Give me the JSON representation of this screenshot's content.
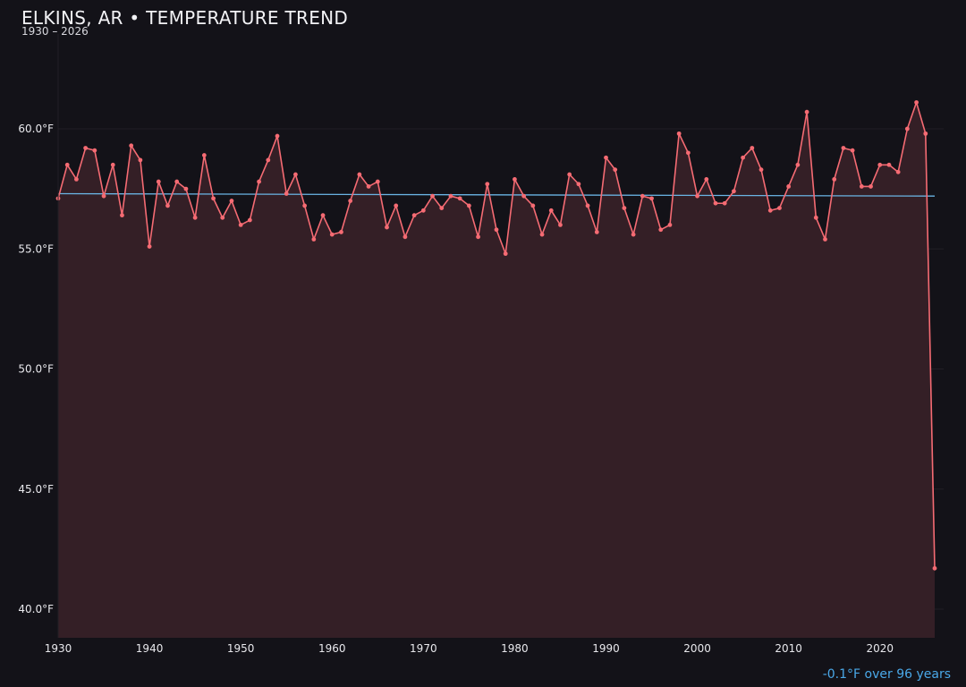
{
  "header": {
    "title": "ELKINS, AR • TEMPERATURE TREND",
    "subtitle": "1930 – 2026",
    "trend_note": "-0.1°F over 96 years"
  },
  "colors": {
    "background": "#131218",
    "line": "#f56b73",
    "area": "#341f26",
    "trend": "#6ab4e4",
    "grid": "#221f26",
    "axis_text": "#e8e8ec"
  },
  "chart_data": {
    "type": "line",
    "title": "ELKINS, AR • TEMPERATURE TREND",
    "subtitle": "1930 – 2026",
    "xlabel": "",
    "ylabel": "",
    "xlim": [
      1930,
      2027
    ],
    "ylim": [
      38.8,
      62.5
    ],
    "grid": true,
    "legend": "none",
    "y_ticks": [
      40.0,
      45.0,
      50.0,
      55.0,
      60.0
    ],
    "y_tick_labels": [
      "40.0°F",
      "45.0°F",
      "50.0°F",
      "55.0°F",
      "60.0°F"
    ],
    "x_ticks": [
      1930,
      1940,
      1950,
      1960,
      1970,
      1980,
      1990,
      2000,
      2010,
      2020
    ],
    "x_tick_labels": [
      "1930",
      "1940",
      "1950",
      "1960",
      "1970",
      "1980",
      "1990",
      "2000",
      "2010",
      "2020"
    ],
    "series": [
      {
        "x": [
          1930,
          1931,
          1932,
          1933,
          1934,
          1935,
          1936,
          1937,
          1938,
          1939,
          1940,
          1941,
          1942,
          1943,
          1944,
          1945,
          1946,
          1947,
          1948,
          1949,
          1950,
          1951,
          1952,
          1953,
          1954,
          1955,
          1956,
          1957,
          1958,
          1959,
          1960,
          1961,
          1962,
          1963,
          1964,
          1965,
          1966,
          1967,
          1968,
          1969,
          1970,
          1971,
          1972,
          1973,
          1974,
          1975,
          1976,
          1977,
          1978,
          1979,
          1980,
          1981,
          1982,
          1983,
          1984,
          1985,
          1986,
          1987,
          1988,
          1989,
          1990,
          1991,
          1992,
          1993,
          1994,
          1995,
          1996,
          1997,
          1998,
          1999,
          2000,
          2001,
          2002,
          2003,
          2004,
          2005,
          2006,
          2007,
          2008,
          2009,
          2010,
          2011,
          2012,
          2013,
          2014,
          2015,
          2016,
          2017,
          2018,
          2019,
          2020,
          2021,
          2022,
          2023,
          2024,
          2025,
          2026
        ],
        "values": [
          57.1,
          58.5,
          57.9,
          59.2,
          59.1,
          57.2,
          58.5,
          56.4,
          59.3,
          58.7,
          55.1,
          57.8,
          56.8,
          57.8,
          57.5,
          56.3,
          58.9,
          57.1,
          56.3,
          57.0,
          56.0,
          56.2,
          57.8,
          58.7,
          59.7,
          57.3,
          58.1,
          56.8,
          55.4,
          56.4,
          55.6,
          55.7,
          57.0,
          58.1,
          57.6,
          57.8,
          55.9,
          56.8,
          55.5,
          56.4,
          56.6,
          57.2,
          56.7,
          57.2,
          57.1,
          56.8,
          55.5,
          57.7,
          55.8,
          54.8,
          57.9,
          57.2,
          56.8,
          55.6,
          56.6,
          56.0,
          58.1,
          57.7,
          56.8,
          55.7,
          58.8,
          58.3,
          56.7,
          55.6,
          57.2,
          57.1,
          55.8,
          56.0,
          59.8,
          59.0,
          57.2,
          57.9,
          56.9,
          56.9,
          57.4,
          58.8,
          59.2,
          58.3,
          56.6,
          56.7,
          57.6,
          58.5,
          60.7,
          56.3,
          55.4,
          57.9,
          59.2,
          59.1,
          57.6,
          57.6,
          58.5,
          58.5,
          58.2,
          60.0,
          61.1,
          59.8,
          41.7
        ]
      }
    ],
    "trend_line": {
      "start": [
        1930,
        57.3
      ],
      "end": [
        2026,
        57.2
      ]
    }
  }
}
